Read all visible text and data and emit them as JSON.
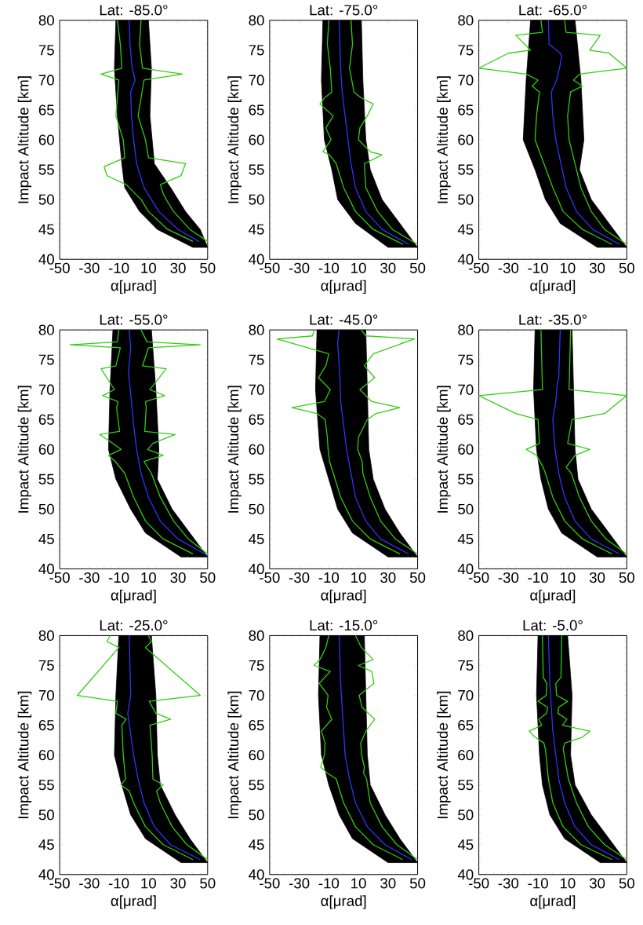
{
  "chart_data": [
    {
      "type": "line",
      "title": "Lat: -85.0°",
      "xlabel": "α[μrad]",
      "ylabel": "Impact Altitude [km]",
      "xlim": [
        -50,
        50
      ],
      "ylim": [
        40,
        80
      ],
      "xticks": [
        -50,
        -30,
        -10,
        10,
        30,
        50
      ],
      "yticks": [
        40,
        45,
        50,
        55,
        60,
        65,
        70,
        75,
        80
      ],
      "series": [
        {
          "type": "area",
          "color": "#000000",
          "x": [
            -12,
            -13,
            -11,
            -8,
            -6,
            4,
            16,
            40,
            50,
            45,
            35,
            25,
            14,
            11,
            12,
            10
          ],
          "values": [
            80,
            72,
            64,
            56,
            52,
            48,
            45,
            42,
            42,
            45,
            48,
            52,
            56,
            64,
            72,
            80
          ]
        },
        {
          "color": "#33cc11",
          "x": [
            -11,
            -9,
            -8,
            -22,
            -10,
            -12,
            -7,
            -6,
            -20,
            -18,
            -5,
            5,
            10,
            23,
            40
          ],
          "values": [
            80,
            76,
            72,
            71,
            70,
            64,
            60,
            57,
            55.5,
            54,
            52.5,
            50,
            48,
            45,
            43
          ]
        },
        {
          "color": "#33cc11",
          "x": [
            5,
            4,
            6,
            33,
            7,
            3,
            8,
            10,
            35,
            32,
            18,
            20,
            22,
            27,
            38,
            50
          ],
          "values": [
            80,
            76,
            72,
            71,
            70,
            64,
            60,
            57,
            56,
            54,
            52.5,
            51,
            50,
            48,
            45,
            43
          ]
        },
        {
          "color": "#3333ff",
          "x": [
            -3,
            -2.5,
            -1,
            1,
            -2,
            -1.5,
            0,
            2,
            7,
            17,
            30,
            44
          ],
          "values": [
            80,
            76,
            72,
            70,
            68,
            64,
            60,
            56,
            52,
            48,
            45,
            43
          ]
        }
      ]
    },
    {
      "type": "line",
      "title": "Lat: -75.0°",
      "xlabel": "α[μrad]",
      "ylabel": "Impact Altitude [km]",
      "xlim": [
        -50,
        50
      ],
      "ylim": [
        40,
        80
      ],
      "xticks": [
        -50,
        -30,
        -10,
        10,
        30,
        50
      ],
      "yticks": [
        40,
        45,
        50,
        55,
        60,
        65,
        70,
        75,
        80
      ],
      "series": [
        {
          "type": "area",
          "color": "#000000",
          "x": [
            -14,
            -15,
            -13,
            -8,
            -4,
            8,
            30,
            50,
            38,
            26,
            18,
            15,
            13,
            12
          ],
          "values": [
            80,
            70,
            60,
            55,
            50,
            46,
            42,
            42,
            46,
            50,
            55,
            60,
            70,
            80
          ]
        },
        {
          "color": "#33cc11",
          "x": [
            -10,
            -11,
            -9,
            -8,
            -13,
            -16,
            -7,
            -12,
            -8.5,
            -14,
            -9.5,
            -5,
            0,
            8,
            20,
            40
          ],
          "values": [
            80,
            76,
            72,
            68,
            67,
            66,
            64,
            62,
            60,
            58,
            57.5,
            56,
            52,
            48,
            45,
            42.5
          ]
        },
        {
          "color": "#33cc11",
          "x": [
            5,
            6,
            4,
            7,
            12,
            20,
            16,
            11,
            10,
            18,
            26,
            14,
            15,
            23,
            33,
            50
          ],
          "values": [
            80,
            76,
            72,
            68,
            67,
            66,
            64,
            62,
            60,
            58,
            57.5,
            56,
            52,
            48,
            45,
            42.5
          ]
        },
        {
          "color": "#3333ff",
          "x": [
            -3,
            -2.5,
            -2,
            -1,
            1,
            3,
            5,
            8,
            15,
            26,
            44
          ],
          "values": [
            80,
            76,
            72,
            68,
            64,
            60,
            56,
            52,
            48,
            45,
            42.5
          ]
        }
      ]
    },
    {
      "type": "line",
      "title": "Lat: -65.0°",
      "xlabel": "α[μrad]",
      "ylabel": "Impact Altitude [km]",
      "xlim": [
        -50,
        50
      ],
      "ylim": [
        40,
        80
      ],
      "xticks": [
        -50,
        -30,
        -10,
        10,
        30,
        50
      ],
      "yticks": [
        40,
        45,
        50,
        55,
        60,
        65,
        70,
        75,
        80
      ],
      "series": [
        {
          "type": "area",
          "color": "#000000",
          "x": [
            -15,
            -18,
            -20,
            -12,
            -5,
            5,
            30,
            50,
            38,
            26,
            18,
            21,
            19,
            15
          ],
          "values": [
            80,
            70,
            60,
            55,
            50,
            46,
            42,
            42,
            46,
            50,
            55,
            60,
            70,
            80
          ]
        },
        {
          "color": "#33cc11",
          "x": [
            -8,
            -7,
            -25,
            -15,
            -30,
            -50,
            -18,
            -10,
            -14,
            -9,
            -11,
            -12,
            -6,
            0,
            7,
            20,
            40
          ],
          "values": [
            80,
            78,
            77.5,
            75,
            74.5,
            72,
            71,
            70,
            69,
            68,
            64,
            60,
            56,
            52,
            48,
            45,
            42.5
          ]
        },
        {
          "color": "#33cc11",
          "x": [
            8,
            9,
            32,
            25,
            38,
            50,
            18,
            14,
            20,
            12,
            10,
            11,
            15,
            19,
            26,
            35,
            50
          ],
          "values": [
            80,
            78,
            77.5,
            75,
            74.5,
            72,
            71,
            70,
            69,
            68,
            64,
            60,
            56,
            52,
            48,
            45,
            42.5
          ]
        },
        {
          "color": "#3333ff",
          "x": [
            -3,
            -2.5,
            5,
            6,
            4.5,
            2.5,
            -1,
            0,
            2,
            5.5,
            9,
            16,
            27,
            45
          ],
          "values": [
            80,
            76,
            74.5,
            74,
            72,
            70,
            68,
            64,
            60,
            56,
            52,
            48,
            45,
            42.5
          ]
        }
      ]
    },
    {
      "type": "line",
      "title": "Lat: -55.0°",
      "xlabel": "α[μrad]",
      "ylabel": "Impact Altitude [km]",
      "xlim": [
        -50,
        50
      ],
      "ylim": [
        40,
        80
      ],
      "xticks": [
        -50,
        -30,
        -10,
        10,
        30,
        50
      ],
      "yticks": [
        40,
        45,
        50,
        55,
        60,
        65,
        70,
        75,
        80
      ],
      "series": [
        {
          "type": "area",
          "color": "#000000",
          "x": [
            -14,
            -16,
            -17,
            -12,
            -2,
            8,
            32,
            50,
            38,
            26,
            16,
            17,
            15,
            12
          ],
          "values": [
            80,
            70,
            60,
            55,
            50,
            46,
            42,
            42,
            46,
            50,
            55,
            60,
            70,
            80
          ]
        },
        {
          "color": "#33cc11",
          "x": [
            -10,
            -11,
            -43,
            -9,
            -12,
            -22,
            -13,
            -21,
            -10.5,
            -11.5,
            -9.5,
            -23,
            -14,
            -8.5,
            -17,
            -12.5,
            -6,
            0,
            8,
            20,
            40
          ],
          "values": [
            80,
            78,
            77.5,
            77,
            74,
            73.5,
            70,
            69,
            68,
            67,
            63,
            62.5,
            61,
            60,
            59,
            58,
            56,
            52,
            48,
            45,
            42.5
          ]
        },
        {
          "color": "#33cc11",
          "x": [
            5,
            9,
            45,
            10,
            6,
            22,
            11,
            21,
            8,
            8.5,
            7.5,
            28,
            13,
            9.5,
            20,
            7,
            12,
            18,
            27,
            37,
            50
          ],
          "values": [
            80,
            78,
            77.5,
            77,
            74,
            73.5,
            70,
            69,
            68,
            67,
            63,
            62.5,
            61,
            60,
            59,
            58,
            56,
            52,
            48,
            45,
            42.5
          ]
        },
        {
          "color": "#3333ff",
          "x": [
            -3,
            -2,
            -3.5,
            -1.5,
            0,
            2,
            5,
            10,
            18,
            30,
            48
          ],
          "values": [
            80,
            77,
            73,
            68,
            64,
            60,
            56,
            52,
            48,
            45,
            42.5
          ]
        }
      ]
    },
    {
      "type": "line",
      "title": "Lat: -45.0°",
      "xlabel": "α[μrad]",
      "ylabel": "Impact Altitude [km]",
      "xlim": [
        -50,
        50
      ],
      "ylim": [
        40,
        80
      ],
      "xticks": [
        -50,
        -30,
        -10,
        10,
        30,
        50
      ],
      "yticks": [
        40,
        45,
        50,
        55,
        60,
        65,
        70,
        75,
        80
      ],
      "series": [
        {
          "type": "area",
          "color": "#000000",
          "x": [
            -18,
            -19,
            -16,
            -10,
            -4,
            6,
            30,
            50,
            38,
            28,
            20,
            17,
            16,
            15
          ],
          "values": [
            80,
            70,
            60,
            55,
            50,
            46,
            42,
            42,
            46,
            50,
            55,
            60,
            70,
            80
          ]
        },
        {
          "color": "#33cc11",
          "x": [
            -20,
            -21,
            -45,
            -10,
            -12,
            -17,
            -9,
            -13,
            -35,
            -18,
            -12.5,
            -11,
            -10.5,
            -9.5,
            -7,
            -2,
            6,
            18,
            38
          ],
          "values": [
            80,
            79,
            78.5,
            76,
            74,
            72,
            70,
            68,
            67,
            66,
            65,
            62,
            60,
            58,
            56,
            52,
            48,
            45,
            42.5
          ]
        },
        {
          "color": "#33cc11",
          "x": [
            12,
            15,
            48,
            20,
            14,
            21,
            11,
            19,
            38,
            22,
            16,
            10,
            9.5,
            12.5,
            13,
            18,
            25,
            35,
            50
          ],
          "values": [
            80,
            79,
            78.5,
            76,
            74,
            72,
            70,
            68,
            67,
            66,
            65,
            62,
            60,
            58,
            56,
            52,
            48,
            45,
            42.5
          ]
        },
        {
          "color": "#3333ff",
          "x": [
            -3,
            -4,
            -3.5,
            -2.5,
            -2,
            0,
            2,
            5,
            8,
            15,
            25,
            44
          ],
          "values": [
            80,
            78,
            76,
            72,
            68,
            64,
            60,
            56,
            52,
            48,
            45,
            42.5
          ]
        }
      ]
    },
    {
      "type": "line",
      "title": "Lat: -35.0°",
      "xlabel": "α[μrad]",
      "ylabel": "Impact Altitude [km]",
      "xlim": [
        -50,
        50
      ],
      "ylim": [
        40,
        80
      ],
      "xticks": [
        -50,
        -30,
        -10,
        10,
        30,
        50
      ],
      "yticks": [
        40,
        45,
        50,
        55,
        60,
        65,
        70,
        75,
        80
      ],
      "series": [
        {
          "type": "area",
          "color": "#000000",
          "x": [
            -12,
            -13,
            -11,
            -8,
            -3,
            6,
            30,
            50,
            38,
            26,
            17,
            15,
            14,
            13
          ],
          "values": [
            80,
            70,
            60,
            55,
            50,
            46,
            42,
            42,
            46,
            50,
            55,
            60,
            70,
            80
          ]
        },
        {
          "color": "#33cc11",
          "x": [
            -8,
            -7,
            -50,
            -25,
            -10,
            -9,
            -18,
            -11,
            -6.5,
            -5,
            0,
            8,
            20,
            40
          ],
          "values": [
            80,
            70,
            69,
            66,
            65,
            61,
            60,
            59,
            57,
            56,
            52,
            48,
            45,
            42.5
          ]
        },
        {
          "color": "#33cc11",
          "x": [
            12,
            11,
            50,
            35,
            13,
            10,
            25,
            15,
            9,
            12.5,
            18,
            26,
            36,
            50
          ],
          "values": [
            80,
            70,
            69,
            66,
            65,
            61,
            60,
            59,
            57,
            56,
            52,
            48,
            45,
            42.5
          ]
        },
        {
          "color": "#3333ff",
          "x": [
            5,
            4.5,
            4,
            3,
            2,
            0,
            1.5,
            4,
            8,
            15,
            26,
            45
          ],
          "values": [
            80,
            76,
            72,
            71,
            68,
            65,
            60,
            56,
            52,
            48,
            45,
            42.5
          ]
        }
      ]
    },
    {
      "type": "line",
      "title": "Lat: -25.0°",
      "xlabel": "α[μrad]",
      "ylabel": "Impact Altitude [km]",
      "xlim": [
        -50,
        50
      ],
      "ylim": [
        40,
        80
      ],
      "xticks": [
        -50,
        -30,
        -10,
        10,
        30,
        50
      ],
      "yticks": [
        40,
        45,
        50,
        55,
        60,
        65,
        70,
        75,
        80
      ],
      "series": [
        {
          "type": "area",
          "color": "#000000",
          "x": [
            -10,
            -12,
            -13,
            -8,
            -2,
            8,
            32,
            50,
            38,
            28,
            18,
            16,
            15,
            12
          ],
          "values": [
            80,
            70,
            60,
            55,
            50,
            46,
            42,
            42,
            46,
            50,
            55,
            60,
            70,
            80
          ]
        },
        {
          "color": "#33cc11",
          "x": [
            -16,
            -18,
            -10,
            -38,
            -11,
            -12,
            -5,
            -8,
            -7,
            -5.5,
            -8.5,
            -3,
            0,
            8,
            20,
            40
          ],
          "values": [
            80,
            79,
            78,
            70,
            69,
            67,
            66,
            65,
            60,
            56,
            55,
            54,
            52,
            48,
            45,
            42.5
          ]
        },
        {
          "color": "#33cc11",
          "x": [
            10,
            12,
            8,
            45,
            10.5,
            15,
            25,
            11,
            12.5,
            13,
            20,
            15.5,
            18,
            26,
            36,
            50
          ],
          "values": [
            80,
            79,
            78,
            70,
            69,
            67,
            66,
            65,
            60,
            56,
            55,
            54,
            52,
            48,
            45,
            42.5
          ]
        },
        {
          "color": "#3333ff",
          "x": [
            -3,
            -2,
            -4,
            0,
            3,
            7,
            14,
            25,
            45
          ],
          "values": [
            80,
            70,
            67,
            60,
            56,
            52,
            48,
            45,
            42.5
          ]
        }
      ]
    },
    {
      "type": "line",
      "title": "Lat: -15.0°",
      "xlabel": "α[μrad]",
      "ylabel": "Impact Altitude [km]",
      "xlim": [
        -50,
        50
      ],
      "ylim": [
        40,
        80
      ],
      "xticks": [
        -50,
        -30,
        -10,
        10,
        30,
        50
      ],
      "yticks": [
        40,
        45,
        50,
        55,
        60,
        65,
        70,
        75,
        80
      ],
      "series": [
        {
          "type": "area",
          "color": "#000000",
          "x": [
            -16,
            -17,
            -15,
            -10,
            -3,
            6,
            30,
            50,
            38,
            28,
            18,
            16,
            15,
            14
          ],
          "values": [
            80,
            70,
            60,
            55,
            50,
            46,
            42,
            42,
            46,
            50,
            55,
            60,
            70,
            80
          ]
        },
        {
          "color": "#33cc11",
          "x": [
            -10,
            -12,
            -16,
            -20,
            -9,
            -16.5,
            -10.5,
            -11.5,
            -8,
            -15,
            -12.5,
            -13,
            -15.5,
            -11,
            -5,
            0,
            8,
            20,
            40
          ],
          "values": [
            80,
            78,
            76,
            75,
            74,
            72,
            70,
            68,
            66,
            64,
            62,
            60,
            58,
            57,
            56,
            52,
            48,
            45,
            42.5
          ]
        },
        {
          "color": "#33cc11",
          "x": [
            8,
            12,
            20,
            10,
            19,
            20.5,
            10.5,
            12.5,
            21,
            15,
            11.5,
            12.2,
            14,
            13.5,
            15.5,
            18,
            26,
            36,
            50
          ],
          "values": [
            80,
            78,
            76,
            75,
            74,
            72,
            70,
            68,
            66,
            64,
            62,
            60,
            58,
            57,
            56,
            52,
            48,
            45,
            42.5
          ]
        },
        {
          "color": "#3333ff",
          "x": [
            -3,
            -2.5,
            -2,
            -1,
            0,
            1,
            4,
            8,
            16,
            28,
            46
          ],
          "values": [
            80,
            76,
            72,
            68,
            64,
            60,
            56,
            52,
            48,
            45,
            42.5
          ]
        }
      ]
    },
    {
      "type": "line",
      "title": "Lat: -5.0°",
      "xlabel": "α[μrad]",
      "ylabel": "Impact Altitude [km]",
      "xlim": [
        -50,
        50
      ],
      "ylim": [
        40,
        80
      ],
      "xticks": [
        -50,
        -30,
        -10,
        10,
        30,
        50
      ],
      "yticks": [
        40,
        45,
        50,
        55,
        60,
        65,
        70,
        75,
        80
      ],
      "series": [
        {
          "type": "area",
          "color": "#000000",
          "x": [
            -10,
            -11,
            -9,
            -7,
            -2,
            8,
            32,
            50,
            38,
            26,
            15,
            12,
            13,
            10
          ],
          "values": [
            80,
            70,
            60,
            55,
            50,
            46,
            42,
            42,
            46,
            50,
            55,
            60,
            70,
            80
          ]
        },
        {
          "color": "#33cc11",
          "x": [
            -7,
            -6.5,
            -4,
            -4.5,
            -10,
            -3.5,
            -4.2,
            -9.5,
            -7.5,
            -16,
            -12,
            -6,
            -5,
            -3,
            0,
            7,
            19,
            40
          ],
          "values": [
            80,
            73,
            72,
            70,
            69,
            68,
            67,
            66,
            65,
            64,
            63,
            62,
            61,
            56,
            52,
            48,
            45,
            42.5
          ]
        },
        {
          "color": "#33cc11",
          "x": [
            6,
            5.5,
            2,
            2.5,
            10,
            4,
            3.5,
            9.5,
            6.5,
            25,
            20,
            8,
            7,
            10.5,
            16,
            24,
            35,
            50
          ],
          "values": [
            80,
            73,
            72,
            70,
            69,
            68,
            67,
            66,
            65,
            64,
            63,
            62,
            61,
            56,
            52,
            48,
            45,
            42.5
          ]
        },
        {
          "color": "#3333ff",
          "x": [
            -3,
            -2,
            -1,
            0,
            2,
            4,
            8,
            15,
            26,
            45
          ],
          "values": [
            80,
            72,
            68,
            64,
            60,
            56,
            52,
            48,
            45,
            42.5
          ]
        }
      ]
    }
  ]
}
